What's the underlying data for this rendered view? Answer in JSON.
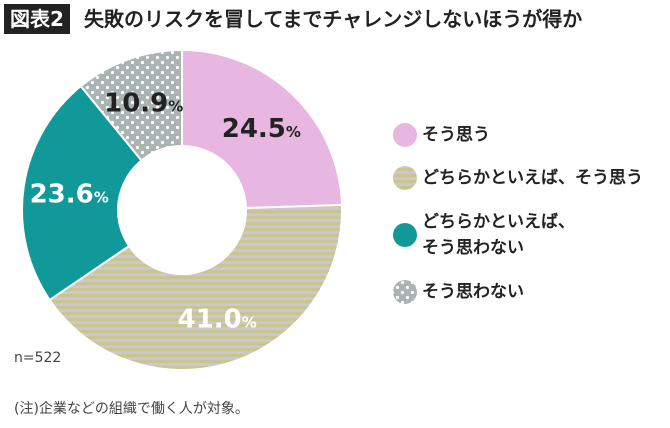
{
  "badge": "図表2",
  "chart_data": {
    "type": "donut",
    "title": "失敗のリスクを冒してまでチャレンジしないほうが得か",
    "categories": [
      "そう思う",
      "どちらかといえば、そう思う",
      "どちらかといえば、\nそう思わない",
      "そう思わない"
    ],
    "values": [
      24.5,
      41.0,
      23.6,
      10.9
    ],
    "value_labels": [
      "24.5%",
      "41.0%",
      "23.6%",
      "10.9%"
    ],
    "colors": [
      "#e7b6e1",
      "#c9c68c",
      "#11999a",
      "#a9b4b3"
    ],
    "patterns": [
      "solid",
      "stripes",
      "solid",
      "dots"
    ],
    "value_label_colors": [
      "#222222",
      "#ffffff",
      "#ffffff",
      "#222222"
    ],
    "note": "n=522"
  },
  "footnote": "(注)企業などの組織で働く人が対象。"
}
